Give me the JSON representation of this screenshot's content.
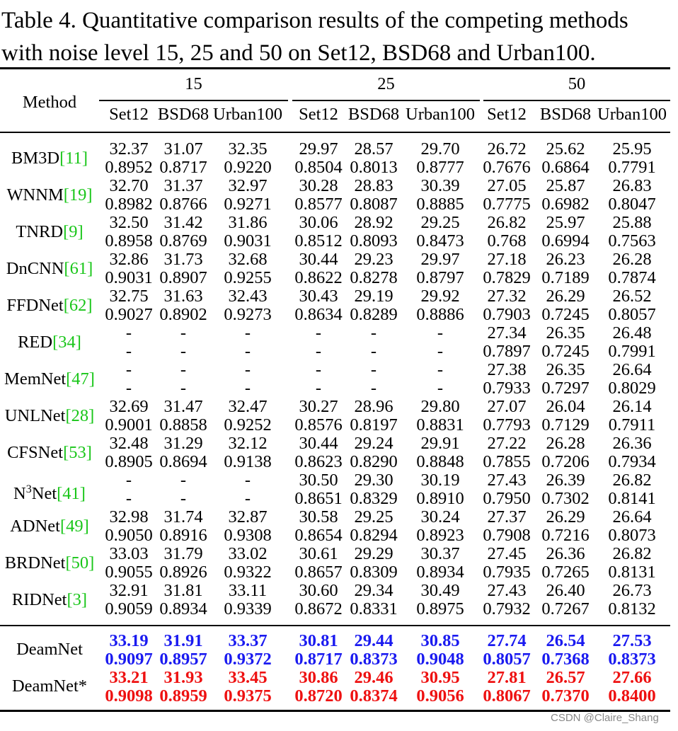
{
  "caption": "Table 4. Quantitative comparison results of the competing methods with noise level 15, 25 and 50 on Set12, BSD68 and Urban100.",
  "header": {
    "method": "Method",
    "noise_levels": [
      "15",
      "25",
      "50"
    ],
    "datasets": [
      "Set12",
      "BSD68",
      "Urban100",
      "Set12",
      "BSD68",
      "Urban100",
      "Set12",
      "BSD68",
      "Urban100"
    ]
  },
  "rows": [
    {
      "name": "BM3D",
      "ref": "[11]",
      "psnr": [
        "32.37",
        "31.07",
        "32.35",
        "29.97",
        "28.57",
        "29.70",
        "26.72",
        "25.62",
        "25.95"
      ],
      "ssim": [
        "0.8952",
        "0.8717",
        "0.9220",
        "0.8504",
        "0.8013",
        "0.8777",
        "0.7676",
        "0.6864",
        "0.7791"
      ]
    },
    {
      "name": "WNNM",
      "ref": "[19]",
      "psnr": [
        "32.70",
        "31.37",
        "32.97",
        "30.28",
        "28.83",
        "30.39",
        "27.05",
        "25.87",
        "26.83"
      ],
      "ssim": [
        "0.8982",
        "0.8766",
        "0.9271",
        "0.8577",
        "0.8087",
        "0.8885",
        "0.7775",
        "0.6982",
        "0.8047"
      ]
    },
    {
      "name": "TNRD",
      "ref": "[9]",
      "psnr": [
        "32.50",
        "31.42",
        "31.86",
        "30.06",
        "28.92",
        "29.25",
        "26.82",
        "25.97",
        "25.88"
      ],
      "ssim": [
        "0.8958",
        "0.8769",
        "0.9031",
        "0.8512",
        "0.8093",
        "0.8473",
        "0.768",
        "0.6994",
        "0.7563"
      ]
    },
    {
      "name": "DnCNN",
      "ref": "[61]",
      "psnr": [
        "32.86",
        "31.73",
        "32.68",
        "30.44",
        "29.23",
        "29.97",
        "27.18",
        "26.23",
        "26.28"
      ],
      "ssim": [
        "0.9031",
        "0.8907",
        "0.9255",
        "0.8622",
        "0.8278",
        "0.8797",
        "0.7829",
        "0.7189",
        "0.7874"
      ]
    },
    {
      "name": "FFDNet",
      "ref": "[62]",
      "psnr": [
        "32.75",
        "31.63",
        "32.43",
        "30.43",
        "29.19",
        "29.92",
        "27.32",
        "26.29",
        "26.52"
      ],
      "ssim": [
        "0.9027",
        "0.8902",
        "0.9273",
        "0.8634",
        "0.8289",
        "0.8886",
        "0.7903",
        "0.7245",
        "0.8057"
      ]
    },
    {
      "name": "RED",
      "ref": "[34]",
      "psnr": [
        "-",
        "-",
        "-",
        "-",
        "-",
        "-",
        "27.34",
        "26.35",
        "26.48"
      ],
      "ssim": [
        "-",
        "-",
        "-",
        "-",
        "-",
        "-",
        "0.7897",
        "0.7245",
        "0.7991"
      ]
    },
    {
      "name": "MemNet",
      "ref": "[47]",
      "psnr": [
        "-",
        "-",
        "-",
        "-",
        "-",
        "-",
        "27.38",
        "26.35",
        "26.64"
      ],
      "ssim": [
        "-",
        "-",
        "-",
        "-",
        "-",
        "-",
        "0.7933",
        "0.7297",
        "0.8029"
      ]
    },
    {
      "name": "UNLNet",
      "ref": "[28]",
      "psnr": [
        "32.69",
        "31.47",
        "32.47",
        "30.27",
        "28.96",
        "29.80",
        "27.07",
        "26.04",
        "26.14"
      ],
      "ssim": [
        "0.9001",
        "0.8858",
        "0.9252",
        "0.8576",
        "0.8197",
        "0.8831",
        "0.7793",
        "0.7129",
        "0.7911"
      ]
    },
    {
      "name": "CFSNet",
      "ref": "[53]",
      "psnr": [
        "32.48",
        "31.29",
        "32.12",
        "30.44",
        "29.24",
        "29.91",
        "27.22",
        "26.28",
        "26.36"
      ],
      "ssim": [
        "0.8905",
        "0.8694",
        "0.9138",
        "0.8623",
        "0.8290",
        "0.8848",
        "0.7855",
        "0.7206",
        "0.7934"
      ]
    },
    {
      "name": "N",
      "sup": "3",
      "name_suffix": "Net",
      "ref": "[41]",
      "psnr": [
        "-",
        "-",
        "-",
        "30.50",
        "29.30",
        "30.19",
        "27.43",
        "26.39",
        "26.82"
      ],
      "ssim": [
        "-",
        "-",
        "-",
        "0.8651",
        "0.8329",
        "0.8910",
        "0.7950",
        "0.7302",
        "0.8141"
      ]
    },
    {
      "name": "ADNet",
      "ref": "[49]",
      "psnr": [
        "32.98",
        "31.74",
        "32.87",
        "30.58",
        "29.25",
        "30.24",
        "27.37",
        "26.29",
        "26.64"
      ],
      "ssim": [
        "0.9050",
        "0.8916",
        "0.9308",
        "0.8654",
        "0.8294",
        "0.8923",
        "0.7908",
        "0.7216",
        "0.8073"
      ]
    },
    {
      "name": "BRDNet",
      "ref": "[50]",
      "psnr": [
        "33.03",
        "31.79",
        "33.02",
        "30.61",
        "29.29",
        "30.37",
        "27.45",
        "26.36",
        "26.82"
      ],
      "ssim": [
        "0.9055",
        "0.8926",
        "0.9322",
        "0.8657",
        "0.8309",
        "0.8934",
        "0.7935",
        "0.7265",
        "0.8131"
      ]
    },
    {
      "name": "RIDNet",
      "ref": "[3]",
      "psnr": [
        "32.91",
        "31.81",
        "33.11",
        "30.60",
        "29.34",
        "30.49",
        "27.43",
        "26.40",
        "26.73"
      ],
      "ssim": [
        "0.9059",
        "0.8934",
        "0.9339",
        "0.8672",
        "0.8331",
        "0.8975",
        "0.7932",
        "0.7267",
        "0.8132"
      ]
    }
  ],
  "ours": [
    {
      "name": "DeamNet",
      "style": "blue",
      "psnr": [
        "33.19",
        "31.91",
        "33.37",
        "30.81",
        "29.44",
        "30.85",
        "27.74",
        "26.54",
        "27.53"
      ],
      "ssim": [
        "0.9097",
        "0.8957",
        "0.9372",
        "0.8717",
        "0.8373",
        "0.9048",
        "0.8057",
        "0.7368",
        "0.8373"
      ]
    },
    {
      "name": "DeamNet*",
      "style": "red",
      "psnr": [
        "33.21",
        "31.93",
        "33.45",
        "30.86",
        "29.46",
        "30.95",
        "27.81",
        "26.57",
        "27.66"
      ],
      "ssim": [
        "0.9098",
        "0.8959",
        "0.9375",
        "0.8720",
        "0.8374",
        "0.9056",
        "0.8067",
        "0.7370",
        "0.8400"
      ]
    }
  ],
  "colors": {
    "ref": "#19c619",
    "best": "#1a1af0",
    "second": "#ee1111"
  },
  "watermark": "CSDN @Claire_Shang"
}
